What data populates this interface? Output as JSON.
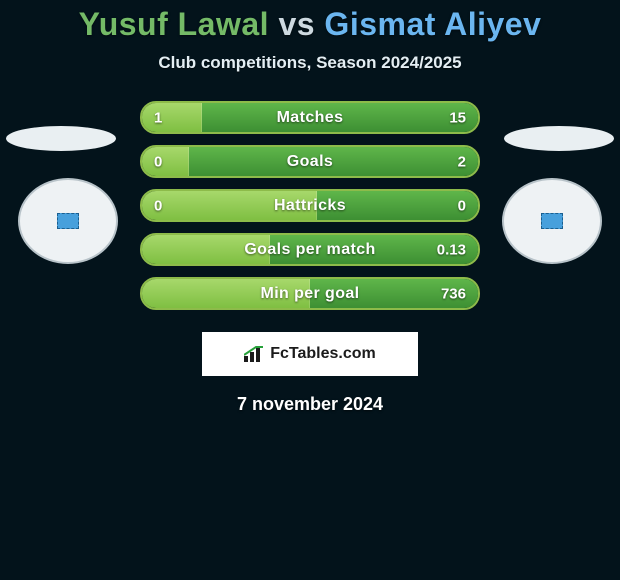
{
  "background_color": "#03131b",
  "header": {
    "player1_name": "Yusuf Lawal",
    "vs_text": "vs",
    "player2_name": "Gismat Aliyev",
    "player1_color": "#74ba67",
    "vs_color": "#cdd9e0",
    "player2_color": "#6bb6f0",
    "subtitle": "Club competitions, Season 2024/2025"
  },
  "bars": {
    "border_color": "#8dbb4a",
    "fill_left_color": "#7fbf42",
    "fill_right_color": "#3d8f33",
    "items": [
      {
        "label": "Matches",
        "left_val": "1",
        "right_val": "15",
        "left_pct": 18,
        "right_pct": 82
      },
      {
        "label": "Goals",
        "left_val": "0",
        "right_val": "2",
        "left_pct": 14,
        "right_pct": 86
      },
      {
        "label": "Hattricks",
        "left_val": "0",
        "right_val": "0",
        "left_pct": 52,
        "right_pct": 48
      },
      {
        "label": "Goals per match",
        "left_val": "",
        "right_val": "0.13",
        "left_pct": 38,
        "right_pct": 62
      },
      {
        "label": "Min per goal",
        "left_val": "",
        "right_val": "736",
        "left_pct": 50,
        "right_pct": 50
      }
    ]
  },
  "brand": {
    "text": "FcTables.com"
  },
  "date_text": "7 november 2024"
}
